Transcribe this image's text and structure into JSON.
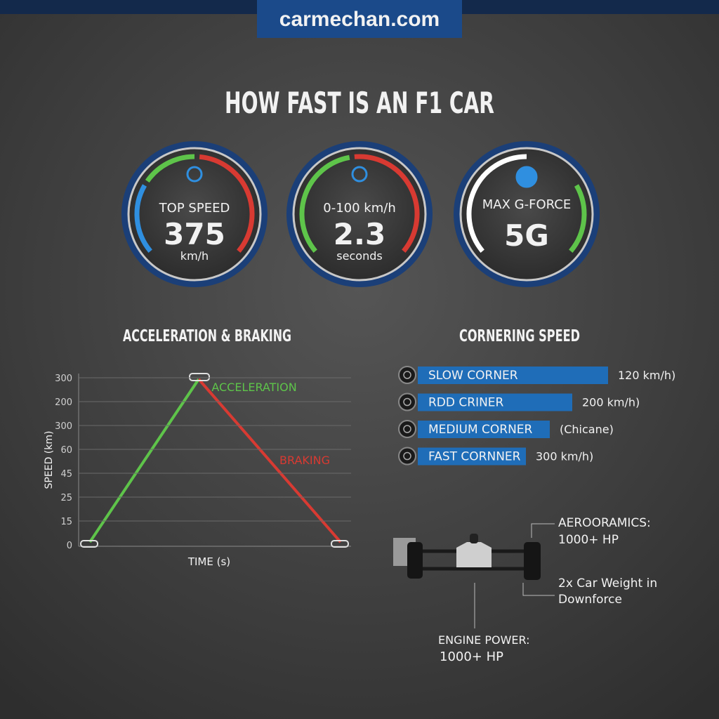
{
  "site": "carmechan.com",
  "title": "HOW FAST IS AN F1 CAR",
  "gauges": [
    {
      "label": "TOP SPEED",
      "value": "375",
      "unit": "km/h"
    },
    {
      "label": "0-100 km/h",
      "value": "2.3",
      "unit": "seconds"
    },
    {
      "label": "MAX G-FORCE",
      "value": "5G"
    }
  ],
  "acceleration_chart": {
    "title": "ACCELERATION & BRAKING",
    "y_axis_label": "SPEED (km)",
    "y_labels": [
      "300",
      "200",
      "300",
      "60",
      "45",
      "25",
      "15",
      "0"
    ],
    "x_axis_label": "TIME (s)",
    "acceleration_label": "ACCELERATION",
    "braking_label": "BRAKING"
  },
  "cornering": {
    "title": "CORNERING SPEED",
    "rows": [
      {
        "label": "SLOW CORNER",
        "value_label": "120 km/h)"
      },
      {
        "label": "RDD CRINER",
        "value_label": "200 km/h)"
      },
      {
        "label": "MEDIUM CORNER",
        "value_label": "(Chicane)"
      },
      {
        "label": "FAST CORNNER",
        "value_label": "300 km/h)"
      }
    ]
  },
  "car_annotations": {
    "aero_title": "AEROORAMICS:",
    "aero_value": "1000+ HP",
    "downforce_line1": "2x Car Weight in",
    "downforce_line2": "Downforce",
    "engine_title": "ENGINE POWER:",
    "engine_value": "1000+ HP"
  }
}
